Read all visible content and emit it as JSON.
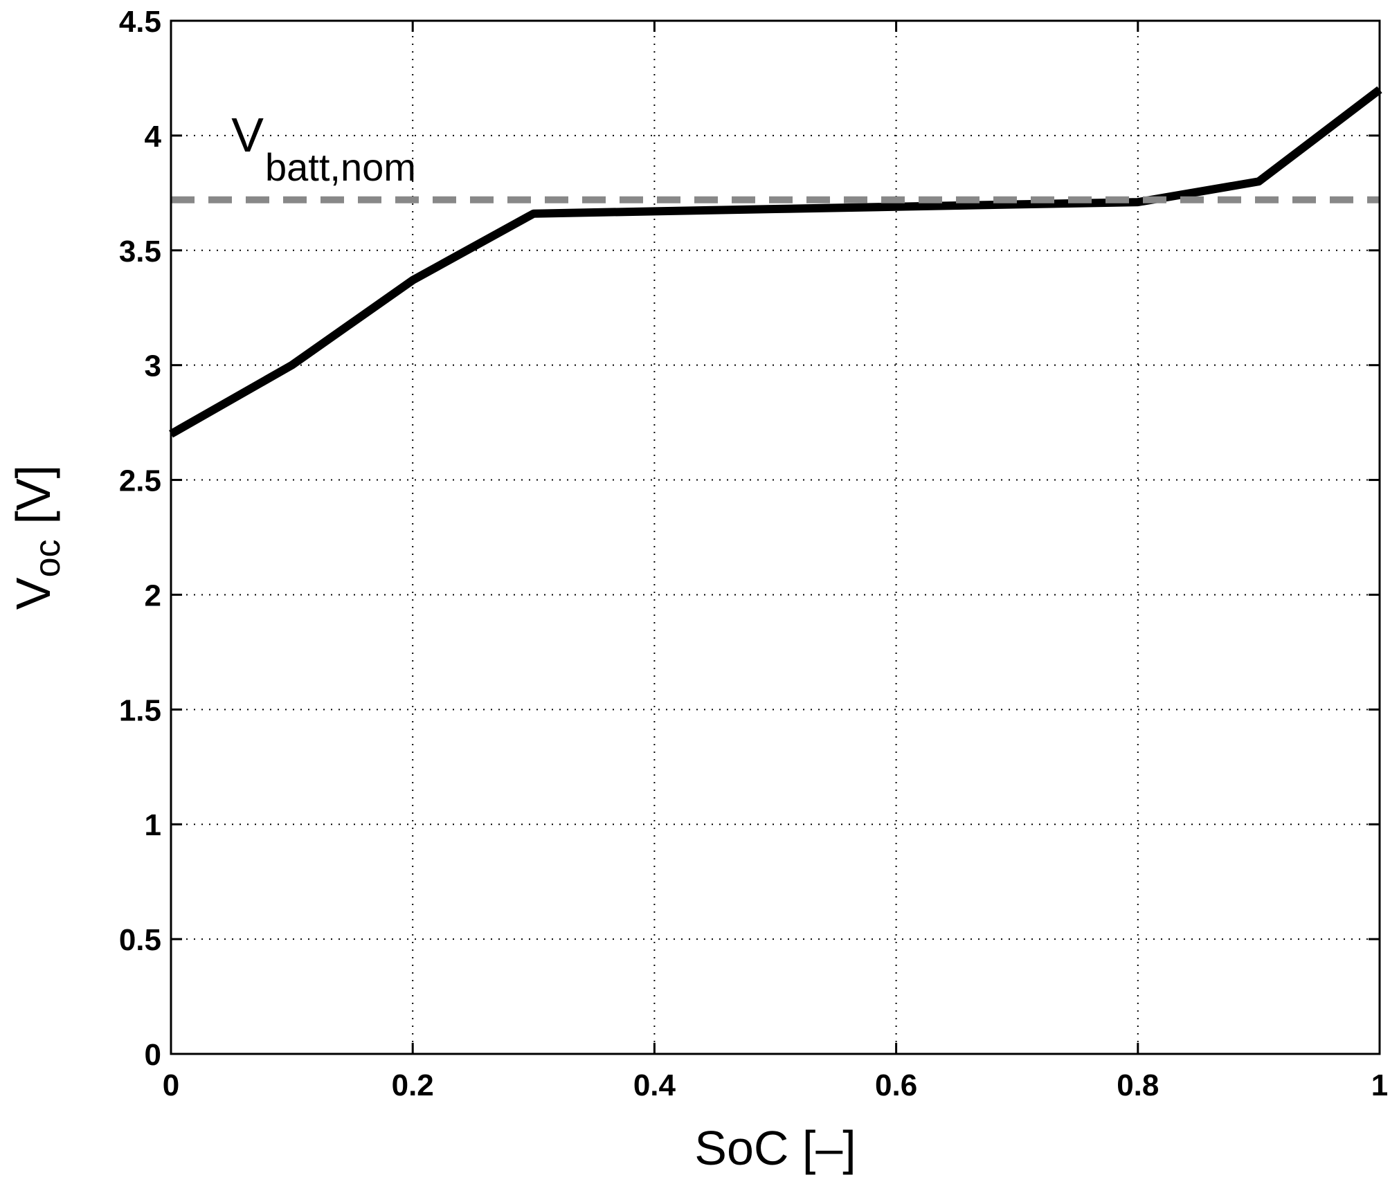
{
  "chart_data": {
    "type": "line",
    "title": "",
    "xlabel": "SoC [–]",
    "ylabel": "V",
    "ylabel_subscript": "oc",
    "ylabel_unit": "[V]",
    "xlim": [
      0,
      1
    ],
    "ylim": [
      0,
      4.5
    ],
    "xticks": [
      0,
      0.2,
      0.4,
      0.6,
      0.8,
      1
    ],
    "xtick_labels": [
      "0",
      "0.2",
      "0.4",
      "0.6",
      "0.8",
      "1"
    ],
    "yticks": [
      0,
      0.5,
      1,
      1.5,
      2,
      2.5,
      3,
      3.5,
      4,
      4.5
    ],
    "ytick_labels": [
      "0",
      "0.5",
      "1",
      "1.5",
      "2",
      "2.5",
      "3",
      "3.5",
      "4",
      "4.5"
    ],
    "grid": true,
    "series": [
      {
        "name": "V_oc",
        "color": "#000000",
        "style": "solid",
        "x": [
          0,
          0.1,
          0.2,
          0.3,
          0.4,
          0.5,
          0.6,
          0.7,
          0.8,
          0.9,
          1.0
        ],
        "y": [
          2.7,
          3.0,
          3.37,
          3.66,
          3.67,
          3.68,
          3.69,
          3.7,
          3.71,
          3.8,
          4.2
        ]
      },
      {
        "name": "V_batt,nom",
        "color": "#888888",
        "style": "dashed",
        "x": [
          0,
          1
        ],
        "y": [
          3.72,
          3.72
        ]
      }
    ],
    "annotations": [
      {
        "main": "V",
        "subscript": "batt,nom",
        "x": 0.05,
        "y": 3.93
      }
    ]
  }
}
